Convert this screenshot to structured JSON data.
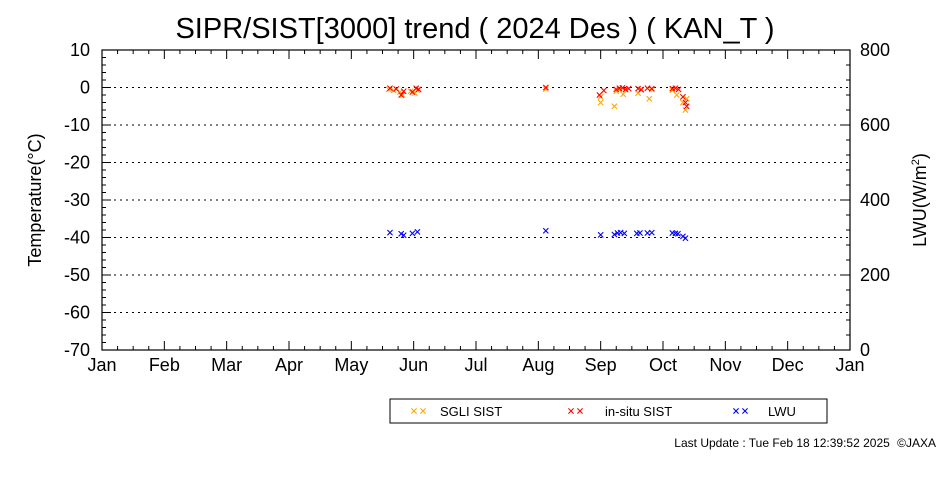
{
  "chart_data": {
    "type": "scatter",
    "title": "SIPR/SIST[3000] trend ( 2024 Des ) ( KAN_T )",
    "xlabel": "",
    "ylabel": "Temperature(°C)",
    "y2label_main": "LWU(W/m",
    "y2label_sup": "2",
    "y2label_end": ")",
    "xlim": [
      0,
      12
    ],
    "ylim": [
      -70,
      10
    ],
    "y2lim": [
      0,
      800
    ],
    "x_ticks": [
      "Jan",
      "Feb",
      "Mar",
      "Apr",
      "May",
      "Jun",
      "Jul",
      "Aug",
      "Sep",
      "Oct",
      "Nov",
      "Dec",
      "Jan"
    ],
    "y_ticks": [
      10,
      0,
      -10,
      -20,
      -30,
      -40,
      -50,
      -60,
      -70
    ],
    "y2_ticks": [
      800,
      600,
      400,
      200,
      0
    ],
    "grid": "horizontal dotted",
    "legend_placement": "bottom",
    "series": [
      {
        "name": "SGLI SIST",
        "color": "#ffa500",
        "axis": "left",
        "points": [
          [
            4.6,
            -0.5
          ],
          [
            4.68,
            -0.8
          ],
          [
            4.78,
            -1.2
          ],
          [
            4.82,
            -2.0
          ],
          [
            4.95,
            -1.0
          ],
          [
            5.02,
            -1.5
          ],
          [
            5.06,
            -0.7
          ],
          [
            7.12,
            -0.4
          ],
          [
            8.0,
            -2.5
          ],
          [
            8.0,
            -4.0
          ],
          [
            8.22,
            -5.0
          ],
          [
            8.25,
            -1.0
          ],
          [
            8.3,
            -0.5
          ],
          [
            8.36,
            -1.8
          ],
          [
            8.4,
            -0.6
          ],
          [
            8.6,
            -1.5
          ],
          [
            8.65,
            -0.5
          ],
          [
            8.78,
            -3.0
          ],
          [
            8.82,
            -0.5
          ],
          [
            9.15,
            -0.7
          ],
          [
            9.22,
            -2.0
          ],
          [
            9.32,
            -4.0
          ],
          [
            9.36,
            -6.0
          ],
          [
            9.38,
            -3.0
          ]
        ]
      },
      {
        "name": "in-situ SIST",
        "color": "#ff0000",
        "axis": "left",
        "points": [
          [
            4.62,
            -0.2
          ],
          [
            4.72,
            -0.4
          ],
          [
            4.8,
            -2.0
          ],
          [
            4.84,
            -1.0
          ],
          [
            4.98,
            -1.2
          ],
          [
            5.04,
            -0.2
          ],
          [
            5.08,
            -0.5
          ],
          [
            7.12,
            0.0
          ],
          [
            7.98,
            -2.0
          ],
          [
            8.05,
            -0.8
          ],
          [
            8.25,
            -0.5
          ],
          [
            8.3,
            -0.2
          ],
          [
            8.35,
            -0.1
          ],
          [
            8.4,
            -0.5
          ],
          [
            8.45,
            -0.3
          ],
          [
            8.6,
            -0.3
          ],
          [
            8.65,
            -0.6
          ],
          [
            8.75,
            -0.2
          ],
          [
            8.82,
            -0.3
          ],
          [
            9.15,
            -0.3
          ],
          [
            9.2,
            -0.2
          ],
          [
            9.25,
            -0.5
          ],
          [
            9.32,
            -2.5
          ],
          [
            9.36,
            -4.0
          ],
          [
            9.38,
            -5.0
          ]
        ]
      },
      {
        "name": "LWU",
        "color": "#0000ff",
        "axis": "right",
        "points": [
          [
            4.62,
            313
          ],
          [
            4.8,
            310
          ],
          [
            4.84,
            306
          ],
          [
            4.98,
            311
          ],
          [
            5.06,
            315
          ],
          [
            7.12,
            318
          ],
          [
            8.0,
            307
          ],
          [
            8.22,
            308
          ],
          [
            8.27,
            312
          ],
          [
            8.32,
            313
          ],
          [
            8.38,
            311
          ],
          [
            8.58,
            311
          ],
          [
            8.63,
            312
          ],
          [
            8.75,
            312
          ],
          [
            8.82,
            313
          ],
          [
            9.15,
            312
          ],
          [
            9.2,
            311
          ],
          [
            9.24,
            310
          ],
          [
            9.32,
            303
          ],
          [
            9.36,
            298
          ]
        ]
      }
    ]
  },
  "footer": {
    "last_update": "Last Update : Tue Feb 18 12:39:52 2025",
    "copyright": "©JAXA"
  }
}
